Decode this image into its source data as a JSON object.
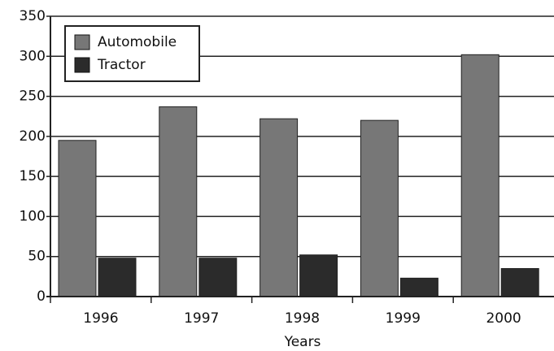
{
  "chart_data": {
    "type": "bar",
    "categories": [
      "1996",
      "1997",
      "1998",
      "1999",
      "2000"
    ],
    "series": [
      {
        "name": "Automobile",
        "color": "#777777",
        "values": [
          195,
          237,
          222,
          220,
          302
        ]
      },
      {
        "name": "Tractor",
        "color": "#2b2b2b",
        "values": [
          48,
          48,
          52,
          23,
          35
        ]
      }
    ],
    "x_label": "Years",
    "ylim": [
      0,
      350
    ],
    "yticks": [
      0,
      50,
      100,
      150,
      200,
      250,
      300,
      350
    ],
    "grid": true,
    "legend": "top-left"
  }
}
